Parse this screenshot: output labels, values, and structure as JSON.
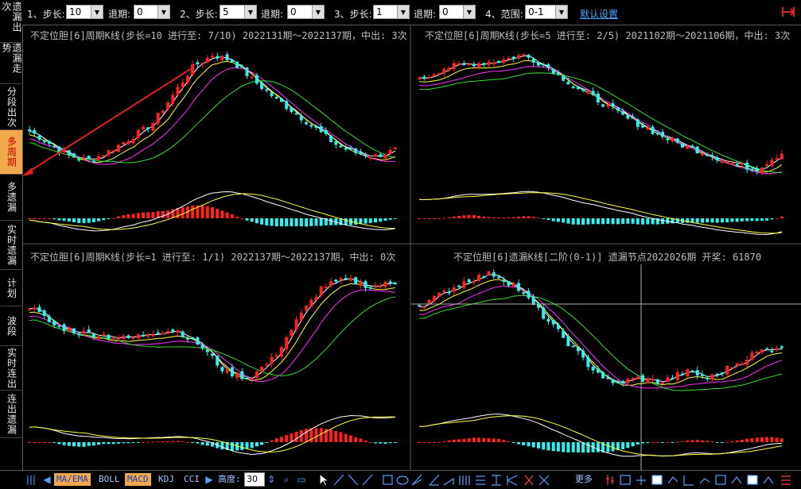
{
  "left_tabs": [
    {
      "label": "遗漏出次",
      "active": false
    },
    {
      "label": "遗漏走势",
      "active": false
    },
    {
      "label": "分段出次",
      "active": false
    },
    {
      "label": "多周期",
      "active": true
    },
    {
      "label": "多遗漏",
      "active": false
    },
    {
      "label": "实时遗漏",
      "active": false
    },
    {
      "label": "计划",
      "active": false
    },
    {
      "label": "波段",
      "active": false
    },
    {
      "label": "实时连出",
      "active": false
    },
    {
      "label": "连出遗漏",
      "active": false
    }
  ],
  "toolbar": {
    "g1_label": "1、步长:",
    "g1_step": "10",
    "g1_back_label": "退期:",
    "g1_back": "0",
    "g2_label": "2、步长:",
    "g2_step": "5",
    "g2_back_label": "退期:",
    "g2_back": "0",
    "g3_label": "3、步长:",
    "g3_step": "1",
    "g3_back_label": "退期:",
    "g3_back": "0",
    "g4_label": "4、范围:",
    "g4_range": "0-1",
    "default_label": "默认设置",
    "exit_icon": "exit-icon"
  },
  "panels": {
    "p1_title": "不定位胆[6]周期K线(步长=10 进行至: 7/10)  2022131期～2022137期，中出: 3次",
    "p2_title": "不定位胆[6]周期K线(步长=5 进行至: 2/5)  2021102期～2021106期，中出: 3次",
    "p3_title": "不定位胆[6]周期K线(步长=1 进行至: 1/1)  2022137期～2022137期，中出: 0次",
    "p4_title": "不定位胆[6]遗漏K线[二阶(0-1)]  遗漏节点2022026期 开奖: 61870"
  },
  "bottom": {
    "ma_label": "MA/EMA",
    "boll_label": "BOLL",
    "macd_label": "MACD",
    "kdj_label": "KDJ",
    "cci_label": "CCI",
    "height_label": "高度:",
    "height_value": "30",
    "more_label": "更多"
  },
  "colors": {
    "up": "#ff2020",
    "down": "#30f0f0",
    "ma_white": "#ffffff",
    "ma_yellow": "#ffff40",
    "ma_magenta": "#ff30ff",
    "ma_green": "#30e030",
    "grid": "#5a5a5a",
    "accent": "#f0a84c"
  },
  "chart_data": [
    {
      "type": "candlestick",
      "title": "不定位胆[6]周期K线(步长=10 进行至: 7/10)  2022131期～2022137期，中出: 3次",
      "trend": [
        0.35,
        0.25,
        0.15,
        0.12,
        0.2,
        0.3,
        0.4,
        0.62,
        0.85,
        0.95,
        0.9,
        0.75,
        0.62,
        0.5,
        0.38,
        0.25,
        0.18,
        0.15,
        0.2
      ]
    },
    {
      "type": "candlestick",
      "title": "不定位胆[6]周期K线(步长=5 进行至: 2/5)  2021102期～2021106期，中出: 3次",
      "trend": [
        0.75,
        0.85,
        0.88,
        0.9,
        0.95,
        0.85,
        0.7,
        0.58,
        0.45,
        0.35,
        0.25,
        0.18,
        0.1,
        0.05,
        0.18
      ]
    },
    {
      "type": "candlestick",
      "title": "不定位胆[6]周期K线(步长=1 进行至: 1/1)  2022137期～2022137期，中出: 0次",
      "trend": [
        0.7,
        0.55,
        0.5,
        0.48,
        0.45,
        0.5,
        0.52,
        0.4,
        0.2,
        0.15,
        0.3,
        0.6,
        0.85,
        0.9,
        0.85,
        0.88
      ]
    },
    {
      "type": "candlestick",
      "title": "不定位胆[6]遗漏K线[二阶(0-1)]  遗漏节点2022026期 开奖: 61870",
      "trend": [
        0.7,
        0.8,
        0.9,
        0.95,
        0.85,
        0.65,
        0.45,
        0.25,
        0.1,
        0.15,
        0.12,
        0.2,
        0.15,
        0.25,
        0.35,
        0.4
      ]
    }
  ]
}
